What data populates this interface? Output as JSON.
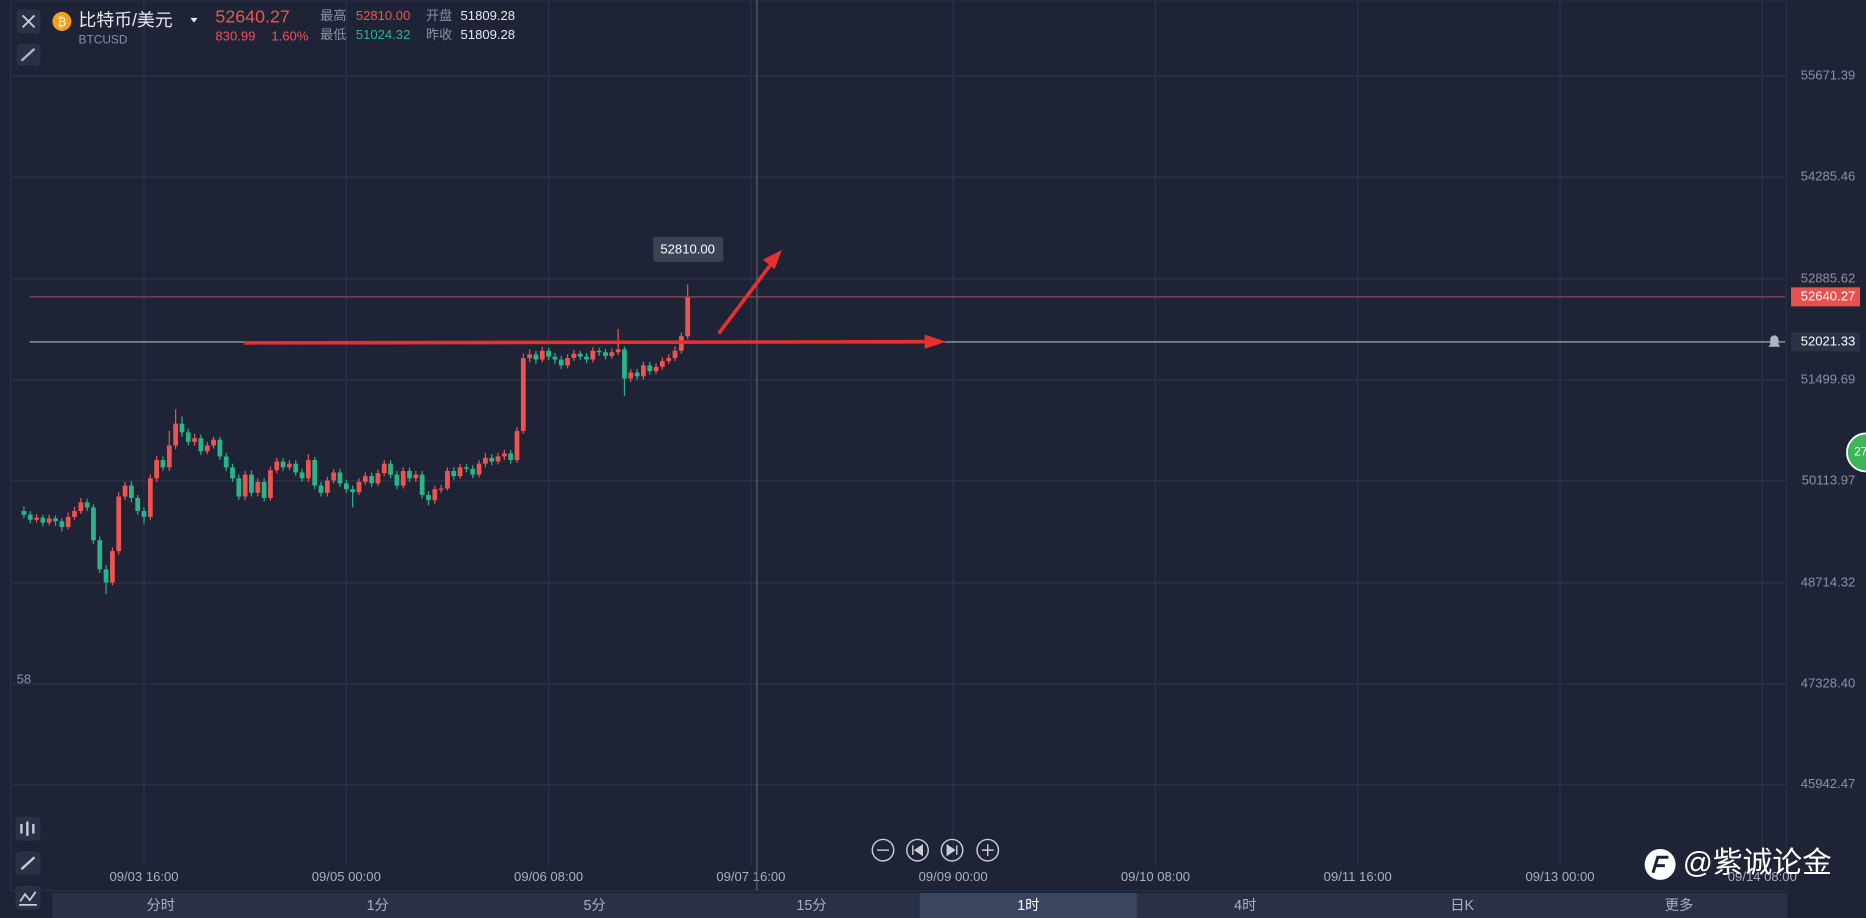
{
  "header": {
    "name": "比特币/美元",
    "symbol": "BTCUSD",
    "price": "52640.27",
    "change": "830.99",
    "change_pct": "1.60%",
    "high_label": "最高",
    "high": "52810.00",
    "low_label": "最低",
    "low": "51024.32",
    "open_label": "开盘",
    "open": "51809.28",
    "prev_label": "昨收",
    "prev": "51809.28"
  },
  "tabs": [
    "分时",
    "1分",
    "5分",
    "15分",
    "1时",
    "4时",
    "日K",
    "更多"
  ],
  "active_tab": 4,
  "side_label": "58",
  "badge": "27",
  "watermark": "@紫诚论金",
  "chart_data": {
    "type": "candlestick",
    "open": [
      49700,
      49650,
      49580,
      49610,
      49540,
      49600,
      49560,
      49480,
      49620,
      49700,
      49820,
      49750,
      49300,
      48900,
      48720,
      49150,
      49900,
      50050,
      49880,
      49700,
      49620,
      50150,
      50400,
      50300,
      50600,
      50900,
      50780,
      50650,
      50700,
      50520,
      50600,
      50680,
      50450,
      50300,
      50150,
      49900,
      50200,
      49950,
      50100,
      49880,
      50260,
      50380,
      50300,
      50350,
      50230,
      50150,
      50400,
      50050,
      49950,
      50120,
      50230,
      50080,
      50000,
      49960,
      50100,
      50180,
      50080,
      50220,
      50350,
      50200,
      50050,
      50250,
      50150,
      50200,
      49920,
      49850,
      50000,
      50010,
      50250,
      50180,
      50300,
      50280,
      50200,
      50350,
      50430,
      50380,
      50450,
      50490,
      50400,
      50800,
      51800,
      51850,
      51780,
      51900,
      51820,
      51780,
      51700,
      51800,
      51860,
      51820,
      51780,
      51900,
      51880,
      51830,
      51880,
      51920,
      51520,
      51600,
      51550,
      51700,
      51620,
      51680,
      51760,
      51800,
      51900,
      52100
    ],
    "high": [
      49760,
      49700,
      49660,
      49650,
      49650,
      49640,
      49600,
      49680,
      49760,
      49880,
      49870,
      49790,
      49350,
      48960,
      49200,
      49960,
      50100,
      50110,
      49920,
      49750,
      50200,
      50460,
      50450,
      50800,
      51100,
      51000,
      50830,
      50760,
      50750,
      50650,
      50720,
      50720,
      50500,
      50350,
      50200,
      50250,
      50260,
      50150,
      50150,
      50310,
      50430,
      50430,
      50400,
      50400,
      50280,
      50480,
      50440,
      50100,
      50170,
      50280,
      50280,
      50130,
      50050,
      50150,
      50230,
      50230,
      50270,
      50400,
      50400,
      50250,
      50300,
      50300,
      50250,
      50250,
      49970,
      50050,
      50060,
      50300,
      50300,
      50350,
      50340,
      50330,
      50400,
      50500,
      50480,
      50500,
      50540,
      50540,
      50850,
      51860,
      51920,
      51900,
      51950,
      51940,
      51870,
      51830,
      51850,
      51910,
      51900,
      51870,
      51950,
      51940,
      51920,
      51930,
      52200,
      51960,
      51650,
      51650,
      51750,
      51750,
      51730,
      51810,
      51850,
      51960,
      52150,
      52810
    ],
    "low": [
      49600,
      49530,
      49540,
      49490,
      49500,
      49500,
      49420,
      49450,
      49580,
      49660,
      49700,
      49250,
      48850,
      48560,
      48680,
      49100,
      49850,
      49820,
      49650,
      49520,
      49580,
      50100,
      50250,
      50250,
      50550,
      50720,
      50600,
      50600,
      50470,
      50480,
      50560,
      50400,
      50250,
      50100,
      49850,
      49850,
      49900,
      49900,
      49830,
      49840,
      50220,
      50250,
      50260,
      50180,
      50100,
      50100,
      50000,
      49900,
      49900,
      50080,
      50030,
      49950,
      49750,
      49920,
      50060,
      50030,
      50040,
      50180,
      50150,
      50000,
      50010,
      50100,
      50100,
      49870,
      49780,
      49800,
      49950,
      49980,
      50130,
      50140,
      50230,
      50150,
      50160,
      50300,
      50330,
      50340,
      50400,
      50350,
      50360,
      50760,
      51740,
      51720,
      51740,
      51770,
      51720,
      51650,
      51660,
      51760,
      51770,
      51730,
      51740,
      51830,
      51780,
      51790,
      51840,
      51280,
      51470,
      51500,
      51500,
      51570,
      51580,
      51640,
      51720,
      51760,
      51860,
      52060
    ],
    "close": [
      49650,
      49580,
      49610,
      49540,
      49600,
      49560,
      49480,
      49620,
      49700,
      49820,
      49750,
      49300,
      48900,
      48720,
      49150,
      49900,
      50050,
      49880,
      49700,
      49620,
      50150,
      50400,
      50300,
      50600,
      50900,
      50780,
      50650,
      50700,
      50520,
      50600,
      50680,
      50450,
      50300,
      50150,
      49900,
      50200,
      49950,
      50100,
      49880,
      50260,
      50380,
      50300,
      50350,
      50230,
      50150,
      50400,
      50050,
      49950,
      50120,
      50230,
      50080,
      50000,
      49960,
      50100,
      50180,
      50080,
      50220,
      50350,
      50200,
      50050,
      50250,
      50150,
      50200,
      49920,
      49850,
      50000,
      50010,
      50250,
      50180,
      50300,
      50280,
      50200,
      50350,
      50430,
      50380,
      50450,
      50490,
      50400,
      50800,
      51800,
      51850,
      51780,
      51900,
      51820,
      51780,
      51700,
      51800,
      51860,
      51820,
      51780,
      51900,
      51880,
      51830,
      51880,
      51920,
      51520,
      51600,
      51550,
      51700,
      51620,
      51680,
      51760,
      51800,
      51900,
      52100,
      52640.27
    ],
    "up_color": "#ef5350",
    "down_color": "#2bb38a",
    "ylim": [
      44817,
      56715
    ],
    "yticks": [
      45942.47,
      {
        "value": 47328.4,
        "label": "47328.40"
      },
      48714.32,
      50113.97,
      51499.69,
      52885.62,
      54285.46,
      55671.39
    ],
    "xlim": [
      -1.9,
      278.6
    ],
    "xticks": [
      {
        "value": 19,
        "label": "09/03 16:00"
      },
      {
        "value": 51,
        "label": "09/05 00:00"
      },
      {
        "value": 83,
        "label": "09/06 08:00"
      },
      {
        "value": 115,
        "label": "09/07 16:00"
      },
      {
        "value": 147,
        "label": "09/09 00:00"
      },
      {
        "value": 179,
        "label": "09/10 08:00"
      },
      {
        "value": 211,
        "label": "09/11 16:00"
      },
      {
        "value": 243,
        "label": "09/13 00:00"
      },
      {
        "value": 275,
        "label": "09/14 08:00"
      }
    ],
    "grid": true,
    "price_lines": [
      {
        "value": 52640.27,
        "color": "#e5514c",
        "line_color": "#8a4a55"
      },
      {
        "value": 52021.33,
        "color": "#2b3245",
        "line_color": "#aeb3c0"
      }
    ],
    "high_marker": {
      "value": 52810,
      "label": "52810.00"
    }
  }
}
